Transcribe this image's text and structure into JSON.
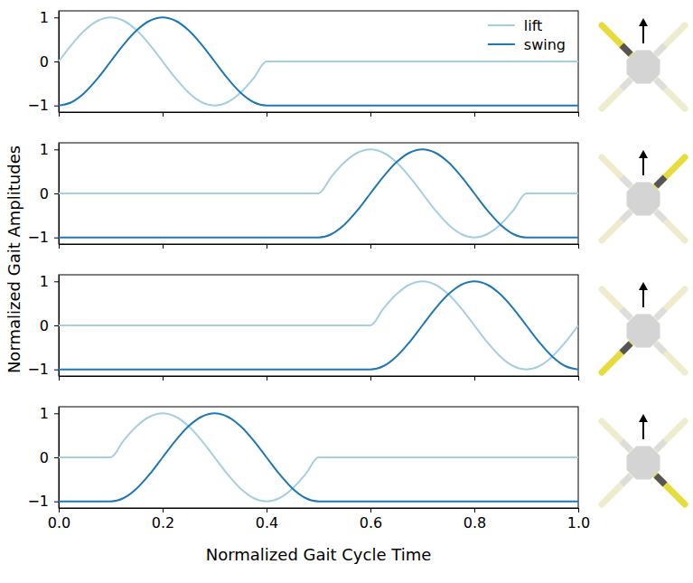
{
  "chart_data": [
    {
      "type": "line",
      "y_label": "Normalized Gait Amplitudes",
      "legend": "upper right",
      "tick_labels": "y",
      "xlim": [
        0,
        1
      ],
      "ylim": [
        -1.15,
        1.15
      ],
      "xticks": [
        {
          "value": 0,
          "label": "0.0"
        },
        {
          "value": 0.2,
          "label": "0.2"
        },
        {
          "value": 0.4,
          "label": "0.4"
        },
        {
          "value": 0.6,
          "label": "0.6"
        },
        {
          "value": 0.8,
          "label": "0.8"
        },
        {
          "value": 1,
          "label": "1.0"
        }
      ],
      "yticks": [
        {
          "value": -1,
          "label": "−1"
        },
        0,
        1
      ],
      "x": [
        0,
        0.025,
        0.05,
        0.075,
        0.1,
        0.125,
        0.15,
        0.175,
        0.2,
        0.225,
        0.25,
        0.275,
        0.3,
        0.325,
        0.35,
        0.375,
        0.4,
        0.425,
        0.45,
        0.475,
        0.5,
        0.525,
        0.55,
        0.575,
        0.6,
        0.625,
        0.65,
        0.675,
        0.7,
        0.725,
        0.75,
        0.775,
        0.8,
        0.825,
        0.85,
        0.875,
        0.9,
        0.925,
        0.95,
        0.975,
        1.0
      ],
      "series": [
        {
          "name": "lift",
          "color": "#a6cee3",
          "values": [
            0,
            0.383,
            0.707,
            0.924,
            1,
            0.924,
            0.707,
            0.383,
            0,
            -0.383,
            -0.707,
            -0.924,
            -1,
            -0.924,
            -0.707,
            -0.383,
            0,
            0,
            0,
            0,
            0,
            0,
            0,
            0,
            0,
            0,
            0,
            0,
            0,
            0,
            0,
            0,
            0,
            0,
            0,
            0,
            0,
            0,
            0,
            0,
            0
          ]
        },
        {
          "name": "swing",
          "color": "#1f78b4",
          "values": [
            -1,
            -0.924,
            -0.707,
            -0.383,
            0,
            0.383,
            0.707,
            0.924,
            1,
            0.924,
            0.707,
            0.383,
            0,
            -0.383,
            -0.707,
            -0.924,
            -1,
            -1,
            -1,
            -1,
            -1,
            -1,
            -1,
            -1,
            -1,
            -1,
            -1,
            -1,
            -1,
            -1,
            -1,
            -1,
            -1,
            -1,
            -1,
            -1,
            -1,
            -1,
            -1,
            -1,
            -1
          ]
        }
      ]
    },
    {
      "type": "line",
      "tick_labels": "y",
      "xlim": [
        0,
        1
      ],
      "ylim": [
        -1.15,
        1.15
      ],
      "xticks": [
        {
          "value": 0,
          "label": "0.0"
        },
        {
          "value": 0.2,
          "label": "0.2"
        },
        {
          "value": 0.4,
          "label": "0.4"
        },
        {
          "value": 0.6,
          "label": "0.6"
        },
        {
          "value": 0.8,
          "label": "0.8"
        },
        {
          "value": 1,
          "label": "1.0"
        }
      ],
      "yticks": [
        {
          "value": -1,
          "label": "−1"
        },
        0,
        1
      ],
      "x": [
        0,
        0.025,
        0.05,
        0.075,
        0.1,
        0.125,
        0.15,
        0.175,
        0.2,
        0.225,
        0.25,
        0.275,
        0.3,
        0.325,
        0.35,
        0.375,
        0.4,
        0.425,
        0.45,
        0.475,
        0.5,
        0.525,
        0.55,
        0.575,
        0.6,
        0.625,
        0.65,
        0.675,
        0.7,
        0.725,
        0.75,
        0.775,
        0.8,
        0.825,
        0.85,
        0.875,
        0.9,
        0.925,
        0.95,
        0.975,
        1.0
      ],
      "series": [
        {
          "color": "#a6cee3",
          "values": [
            0,
            0,
            0,
            0,
            0,
            0,
            0,
            0,
            0,
            0,
            0,
            0,
            0,
            0,
            0,
            0,
            0,
            0,
            0,
            0,
            0,
            0.383,
            0.707,
            0.924,
            1,
            0.924,
            0.707,
            0.383,
            0,
            -0.383,
            -0.707,
            -0.924,
            -1,
            -0.924,
            -0.707,
            -0.383,
            0,
            0,
            0,
            0,
            0
          ]
        },
        {
          "color": "#1f78b4",
          "values": [
            -1,
            -1,
            -1,
            -1,
            -1,
            -1,
            -1,
            -1,
            -1,
            -1,
            -1,
            -1,
            -1,
            -1,
            -1,
            -1,
            -1,
            -1,
            -1,
            -1,
            -1,
            -0.924,
            -0.707,
            -0.383,
            0,
            0.383,
            0.707,
            0.924,
            1,
            0.924,
            0.707,
            0.383,
            0,
            -0.383,
            -0.707,
            -0.924,
            -1,
            -1,
            -1,
            -1,
            -1
          ]
        }
      ]
    },
    {
      "type": "line",
      "tick_labels": "y",
      "xlim": [
        0,
        1
      ],
      "ylim": [
        -1.15,
        1.15
      ],
      "xticks": [
        {
          "value": 0,
          "label": "0.0"
        },
        {
          "value": 0.2,
          "label": "0.2"
        },
        {
          "value": 0.4,
          "label": "0.4"
        },
        {
          "value": 0.6,
          "label": "0.6"
        },
        {
          "value": 0.8,
          "label": "0.8"
        },
        {
          "value": 1,
          "label": "1.0"
        }
      ],
      "yticks": [
        {
          "value": -1,
          "label": "−1"
        },
        0,
        1
      ],
      "x": [
        0,
        0.025,
        0.05,
        0.075,
        0.1,
        0.125,
        0.15,
        0.175,
        0.2,
        0.225,
        0.25,
        0.275,
        0.3,
        0.325,
        0.35,
        0.375,
        0.4,
        0.425,
        0.45,
        0.475,
        0.5,
        0.525,
        0.55,
        0.575,
        0.6,
        0.625,
        0.65,
        0.675,
        0.7,
        0.725,
        0.75,
        0.775,
        0.8,
        0.825,
        0.85,
        0.875,
        0.9,
        0.925,
        0.95,
        0.975,
        1.0
      ],
      "series": [
        {
          "color": "#a6cee3",
          "values": [
            0,
            0,
            0,
            0,
            0,
            0,
            0,
            0,
            0,
            0,
            0,
            0,
            0,
            0,
            0,
            0,
            0,
            0,
            0,
            0,
            0,
            0,
            0,
            0,
            0,
            0.383,
            0.707,
            0.924,
            1,
            0.924,
            0.707,
            0.383,
            0,
            -0.383,
            -0.707,
            -0.924,
            -1,
            -0.924,
            -0.707,
            -0.383,
            0
          ]
        },
        {
          "color": "#1f78b4",
          "values": [
            -1,
            -1,
            -1,
            -1,
            -1,
            -1,
            -1,
            -1,
            -1,
            -1,
            -1,
            -1,
            -1,
            -1,
            -1,
            -1,
            -1,
            -1,
            -1,
            -1,
            -1,
            -1,
            -1,
            -1,
            -1,
            -0.924,
            -0.707,
            -0.383,
            0,
            0.383,
            0.707,
            0.924,
            1,
            0.924,
            0.707,
            0.383,
            0,
            -0.383,
            -0.707,
            -0.924,
            -1
          ]
        }
      ]
    },
    {
      "type": "line",
      "x_label": "Normalized Gait Cycle Time",
      "xlim": [
        0,
        1
      ],
      "ylim": [
        -1.15,
        1.15
      ],
      "xticks": [
        {
          "value": 0,
          "label": "0.0"
        },
        {
          "value": 0.2,
          "label": "0.2"
        },
        {
          "value": 0.4,
          "label": "0.4"
        },
        {
          "value": 0.6,
          "label": "0.6"
        },
        {
          "value": 0.8,
          "label": "0.8"
        },
        {
          "value": 1,
          "label": "1.0"
        }
      ],
      "yticks": [
        {
          "value": -1,
          "label": "−1"
        },
        0,
        1
      ],
      "x": [
        0,
        0.025,
        0.05,
        0.075,
        0.1,
        0.125,
        0.15,
        0.175,
        0.2,
        0.225,
        0.25,
        0.275,
        0.3,
        0.325,
        0.35,
        0.375,
        0.4,
        0.425,
        0.45,
        0.475,
        0.5,
        0.525,
        0.55,
        0.575,
        0.6,
        0.625,
        0.65,
        0.675,
        0.7,
        0.725,
        0.75,
        0.775,
        0.8,
        0.825,
        0.85,
        0.875,
        0.9,
        0.925,
        0.95,
        0.975,
        1.0
      ],
      "series": [
        {
          "color": "#a6cee3",
          "values": [
            0,
            0,
            0,
            0,
            0,
            0.383,
            0.707,
            0.924,
            1,
            0.924,
            0.707,
            0.383,
            0,
            -0.383,
            -0.707,
            -0.924,
            -1,
            -0.924,
            -0.707,
            -0.383,
            0,
            0,
            0,
            0,
            0,
            0,
            0,
            0,
            0,
            0,
            0,
            0,
            0,
            0,
            0,
            0,
            0,
            0,
            0,
            0,
            0
          ]
        },
        {
          "color": "#1f78b4",
          "values": [
            -1,
            -1,
            -1,
            -1,
            -1,
            -0.924,
            -0.707,
            -0.383,
            0,
            0.383,
            0.707,
            0.924,
            1,
            0.924,
            0.707,
            0.383,
            0,
            -0.383,
            -0.707,
            -0.924,
            -1,
            -1,
            -1,
            -1,
            -1,
            -1,
            -1,
            -1,
            -1,
            -1,
            -1,
            -1,
            -1,
            -1,
            -1,
            -1,
            -1,
            -1,
            -1,
            -1,
            -1
          ]
        }
      ]
    }
  ]
}
